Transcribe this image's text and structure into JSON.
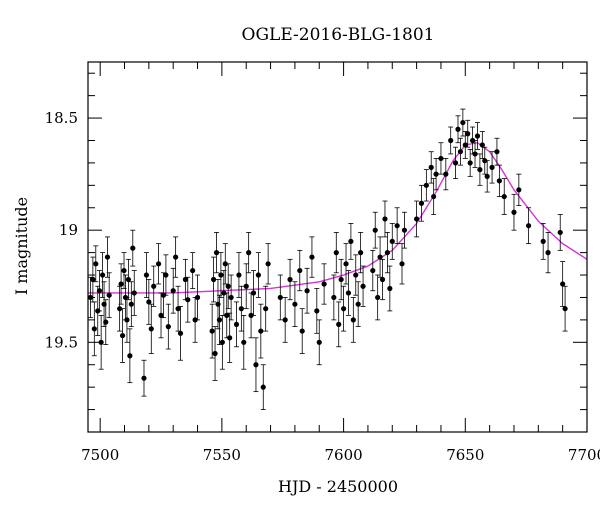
{
  "chart_data": {
    "type": "scatter",
    "title": "OGLE-2016-BLG-1801",
    "xlabel": "HJD - 2450000",
    "ylabel": "I magnitude",
    "xlim": [
      7495,
      7700
    ],
    "ylim": [
      19.9,
      18.25
    ],
    "y_inverted": true,
    "x_ticks": [
      7500,
      7550,
      7600,
      7650,
      7700
    ],
    "x_tick_labels": [
      "7500",
      "7550",
      "7600",
      "7650",
      "7700"
    ],
    "y_ticks": [
      18.5,
      19,
      19.5
    ],
    "y_tick_labels": [
      "18.5",
      "19",
      "19.5"
    ],
    "grid": false,
    "marker_color": "#000000",
    "model_color": "#d633d6",
    "model": {
      "name": "",
      "peak_x": 7652,
      "peak_y": 18.6,
      "baseline_y": 19.28,
      "x": [
        7495,
        7510,
        7530,
        7550,
        7570,
        7590,
        7600,
        7610,
        7620,
        7630,
        7638,
        7645,
        7650,
        7655,
        7660,
        7665,
        7670,
        7680,
        7690,
        7700
      ],
      "y": [
        19.28,
        19.28,
        19.28,
        19.27,
        19.26,
        19.23,
        19.2,
        19.16,
        19.09,
        18.97,
        18.83,
        18.69,
        18.62,
        18.61,
        18.65,
        18.73,
        18.82,
        18.96,
        19.06,
        19.13
      ]
    },
    "series": [
      {
        "values_from_picture": true,
        "points": [
          [
            7496,
            19.3,
            0.09
          ],
          [
            7497,
            19.22,
            0.1
          ],
          [
            7497.6,
            19.44,
            0.12
          ],
          [
            7498.2,
            19.15,
            0.08
          ],
          [
            7499,
            19.36,
            0.11
          ],
          [
            7499.7,
            19.27,
            0.09
          ],
          [
            7500.4,
            19.5,
            0.12
          ],
          [
            7501,
            19.2,
            0.1
          ],
          [
            7501.6,
            19.33,
            0.1
          ],
          [
            7502.3,
            19.41,
            0.1
          ],
          [
            7503,
            19.12,
            0.09
          ],
          [
            7503.7,
            19.29,
            0.1
          ],
          [
            7508,
            19.35,
            0.1
          ],
          [
            7508.6,
            19.24,
            0.09
          ],
          [
            7509.2,
            19.47,
            0.12
          ],
          [
            7509.8,
            19.18,
            0.08
          ],
          [
            7510.4,
            19.3,
            0.1
          ],
          [
            7511,
            19.4,
            0.1
          ],
          [
            7511.6,
            19.22,
            0.09
          ],
          [
            7512.2,
            19.56,
            0.12
          ],
          [
            7512.8,
            19.33,
            0.1
          ],
          [
            7513.4,
            19.08,
            0.08
          ],
          [
            7514,
            19.28,
            0.1
          ],
          [
            7518,
            19.66,
            0.08
          ],
          [
            7519,
            19.2,
            0.1
          ],
          [
            7520,
            19.32,
            0.1
          ],
          [
            7521,
            19.44,
            0.11
          ],
          [
            7522,
            19.25,
            0.09
          ],
          [
            7524,
            19.15,
            0.09
          ],
          [
            7525,
            19.38,
            0.1
          ],
          [
            7526,
            19.29,
            0.1
          ],
          [
            7527,
            19.2,
            0.09
          ],
          [
            7528,
            19.43,
            0.1
          ],
          [
            7530,
            19.27,
            0.1
          ],
          [
            7531,
            19.12,
            0.09
          ],
          [
            7532,
            19.35,
            0.1
          ],
          [
            7533,
            19.46,
            0.12
          ],
          [
            7535,
            19.22,
            0.09
          ],
          [
            7536,
            19.31,
            0.1
          ],
          [
            7538,
            19.18,
            0.08
          ],
          [
            7539,
            19.4,
            0.1
          ],
          [
            7540,
            19.3,
            0.1
          ],
          [
            7546,
            19.45,
            0.12
          ],
          [
            7546.6,
            19.22,
            0.1
          ],
          [
            7547.2,
            19.55,
            0.12
          ],
          [
            7547.8,
            19.1,
            0.09
          ],
          [
            7548.4,
            19.33,
            0.11
          ],
          [
            7549,
            19.4,
            0.11
          ],
          [
            7549.6,
            19.2,
            0.1
          ],
          [
            7550.2,
            19.5,
            0.12
          ],
          [
            7550.8,
            19.28,
            0.1
          ],
          [
            7551.4,
            19.15,
            0.09
          ],
          [
            7552,
            19.38,
            0.1
          ],
          [
            7552.6,
            19.25,
            0.1
          ],
          [
            7553.2,
            19.48,
            0.11
          ],
          [
            7553.8,
            19.3,
            0.1
          ],
          [
            7556,
            19.42,
            0.1
          ],
          [
            7557,
            19.2,
            0.1
          ],
          [
            7558,
            19.35,
            0.1
          ],
          [
            7559,
            19.5,
            0.12
          ],
          [
            7560,
            19.25,
            0.1
          ],
          [
            7561,
            19.1,
            0.09
          ],
          [
            7562,
            19.38,
            0.1
          ],
          [
            7563,
            19.28,
            0.1
          ],
          [
            7564,
            19.6,
            0.12
          ],
          [
            7565,
            19.2,
            0.1
          ],
          [
            7566,
            19.45,
            0.12
          ],
          [
            7567,
            19.7,
            0.1
          ],
          [
            7568,
            19.35,
            0.1
          ],
          [
            7569,
            19.15,
            0.09
          ],
          [
            7574,
            19.3,
            0.1
          ],
          [
            7576,
            19.4,
            0.1
          ],
          [
            7578,
            19.22,
            0.09
          ],
          [
            7580,
            19.33,
            0.1
          ],
          [
            7582,
            19.18,
            0.09
          ],
          [
            7583,
            19.45,
            0.1
          ],
          [
            7585,
            19.27,
            0.1
          ],
          [
            7587,
            19.12,
            0.09
          ],
          [
            7589,
            19.36,
            0.1
          ],
          [
            7590,
            19.5,
            0.1
          ],
          [
            7592,
            19.24,
            0.09
          ],
          [
            7596,
            19.3,
            0.1
          ],
          [
            7597,
            19.1,
            0.09
          ],
          [
            7598,
            19.42,
            0.1
          ],
          [
            7599,
            19.22,
            0.09
          ],
          [
            7600,
            19.35,
            0.1
          ],
          [
            7601,
            19.15,
            0.09
          ],
          [
            7602,
            19.28,
            0.1
          ],
          [
            7603,
            19.05,
            0.08
          ],
          [
            7604,
            19.4,
            0.1
          ],
          [
            7605,
            19.2,
            0.09
          ],
          [
            7606,
            19.33,
            0.1
          ],
          [
            7607,
            19.1,
            0.09
          ],
          [
            7608,
            19.25,
            0.09
          ],
          [
            7612,
            19.18,
            0.09
          ],
          [
            7613,
            19.0,
            0.08
          ],
          [
            7614,
            19.3,
            0.1
          ],
          [
            7615,
            19.12,
            0.09
          ],
          [
            7616,
            19.22,
            0.09
          ],
          [
            7617,
            18.95,
            0.08
          ],
          [
            7618,
            19.1,
            0.09
          ],
          [
            7619,
            19.26,
            0.1
          ],
          [
            7620,
            19.05,
            0.08
          ],
          [
            7622,
            18.98,
            0.08
          ],
          [
            7624,
            19.15,
            0.09
          ],
          [
            7625,
            19.0,
            0.08
          ],
          [
            7630,
            18.95,
            0.08
          ],
          [
            7632,
            18.88,
            0.08
          ],
          [
            7634,
            18.8,
            0.07
          ],
          [
            7636,
            18.72,
            0.07
          ],
          [
            7637,
            18.85,
            0.08
          ],
          [
            7638,
            18.75,
            0.07
          ],
          [
            7640,
            18.68,
            0.07
          ],
          [
            7642,
            18.75,
            0.07
          ],
          [
            7644,
            18.6,
            0.06
          ],
          [
            7646,
            18.7,
            0.07
          ],
          [
            7647,
            18.55,
            0.06
          ],
          [
            7648,
            18.65,
            0.06
          ],
          [
            7649,
            18.52,
            0.06
          ],
          [
            7650,
            18.62,
            0.06
          ],
          [
            7651,
            18.57,
            0.06
          ],
          [
            7652,
            18.7,
            0.06
          ],
          [
            7653,
            18.6,
            0.06
          ],
          [
            7654,
            18.66,
            0.06
          ],
          [
            7655,
            18.58,
            0.06
          ],
          [
            7656,
            18.73,
            0.07
          ],
          [
            7657,
            18.62,
            0.06
          ],
          [
            7658,
            18.69,
            0.06
          ],
          [
            7659,
            18.76,
            0.07
          ],
          [
            7661,
            18.72,
            0.07
          ],
          [
            7663,
            18.65,
            0.06
          ],
          [
            7664,
            18.78,
            0.07
          ],
          [
            7666,
            18.85,
            0.08
          ],
          [
            7670,
            18.92,
            0.08
          ],
          [
            7672,
            18.82,
            0.07
          ],
          [
            7676,
            18.98,
            0.08
          ],
          [
            7682,
            19.05,
            0.08
          ],
          [
            7684,
            19.1,
            0.09
          ],
          [
            7689,
            19.01,
            0.08
          ],
          [
            7690,
            19.24,
            0.1
          ],
          [
            7691,
            19.35,
            0.1
          ]
        ]
      }
    ]
  }
}
